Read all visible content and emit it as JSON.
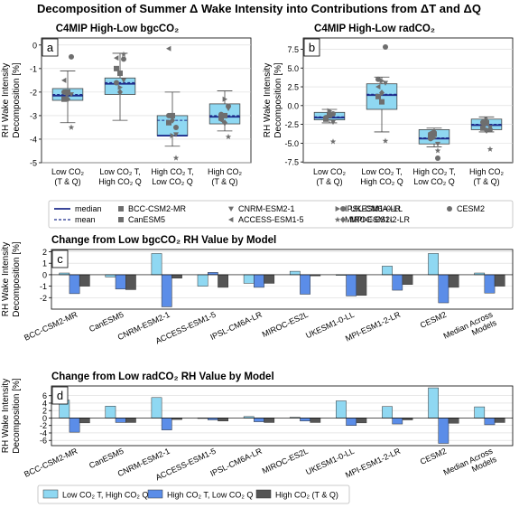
{
  "title": "Decomposition of Summer Δ Wake Intensity into Contributions from ΔT and ΔQ",
  "colors": {
    "box_light": "#8fd8f2",
    "box_mid": "#5b8de8",
    "box_dark": "#555555",
    "median": "#1f2d8c",
    "marker": "#6e6e6e"
  },
  "models": [
    "BCC-CSM2-MR",
    "CanESM5",
    "CNRM-ESM2-1",
    "ACCESS-ESM1-5",
    "IPSL-CM6A-LR",
    "MIROC-ES2L",
    "UKESM1-0-LL",
    "MPI-ESM1-2-LR",
    "CESM2"
  ],
  "legend_box": {
    "median_label": "median",
    "mean_label": "mean",
    "models": [
      {
        "name": "BCC-CSM2-MR",
        "marker": "square"
      },
      {
        "name": "CanESM5",
        "marker": "square"
      },
      {
        "name": "CNRM-ESM2-1",
        "marker": "triangle-down"
      },
      {
        "name": "ACCESS-ESM1-5",
        "marker": "triangle-left"
      },
      {
        "name": "IPSL-CM6A-LR",
        "marker": "triangle-right"
      },
      {
        "name": "MIROC-ES2L",
        "marker": "star"
      },
      {
        "name": "UKESM1-0-LL",
        "marker": "circle"
      },
      {
        "name": "MPI-ESM1-2-LR",
        "marker": "diamond"
      },
      {
        "name": "CESM2",
        "marker": "circle"
      }
    ]
  },
  "legend_bar": {
    "items": [
      {
        "label": "Low CO₂ T, High CO₂ Q",
        "color": "#8fd8f2"
      },
      {
        "label": "High CO₂ T, Low CO₂ Q",
        "color": "#5b8de8"
      },
      {
        "label": "High CO₂ (T & Q)",
        "color": "#555555"
      }
    ]
  },
  "chart_data": [
    {
      "panel": "a",
      "type": "box",
      "title": "C4MIP High-Low bgcCO₂",
      "ylabel": "RH Wake Intensity Decomposition [%]",
      "ylim": [
        -5,
        0.3
      ],
      "yticks": [
        0,
        -1,
        -2,
        -3,
        -4,
        -5
      ],
      "categories": [
        [
          "Low CO₂",
          "(T & Q)"
        ],
        [
          "Low CO₂ T,",
          "High CO₂ Q"
        ],
        [
          "High CO₂ T,",
          "Low CO₂ Q"
        ],
        [
          "High CO₂",
          "(T & Q)"
        ]
      ],
      "boxes": [
        {
          "whislo": -3.3,
          "q1": -2.35,
          "med": -2.15,
          "q3": -1.85,
          "whishi": -1.1,
          "mean": -2.1
        },
        {
          "whislo": -3.2,
          "q1": -2.1,
          "med": -1.65,
          "q3": -1.4,
          "whishi": -0.35,
          "mean": -1.6
        },
        {
          "whislo": -4.3,
          "q1": -3.85,
          "med": -3.85,
          "q3": -3.0,
          "whishi": -2.0,
          "mean": -3.2
        },
        {
          "whislo": -3.65,
          "q1": -3.35,
          "med": -3.05,
          "q3": -2.5,
          "whishi": -1.95,
          "mean": -3.0
        }
      ],
      "points": [
        [
          -2.3,
          -2.0,
          -2.1,
          -1.5,
          -2.1,
          -3.5,
          -2.0,
          -2.3,
          -0.5
        ],
        [
          -1.0,
          -1.2,
          -1.5,
          -0.55,
          -1.8,
          -0.4,
          -1.6,
          -2.0,
          -0.6
        ],
        [
          -3.3,
          -3.0,
          -3.8,
          -0.15,
          -3.85,
          -4.8,
          -3.0,
          -3.2,
          -3.5
        ],
        [
          -3.1,
          -3.0,
          -2.7,
          -3.2,
          -2.3,
          -3.9,
          -2.95,
          -3.3,
          -2.6
        ]
      ]
    },
    {
      "panel": "b",
      "type": "box",
      "title": "C4MIP High-Low radCO₂",
      "ylabel": "RH Wake Intensity Decomposition [%]",
      "ylim": [
        -7.6,
        9.0
      ],
      "yticks": [
        7.5,
        5.0,
        2.5,
        0.0,
        -2.5,
        -5.0,
        -7.5
      ],
      "categories": [
        [
          "Low CO₂",
          "(T & Q)"
        ],
        [
          "Low CO₂ T,",
          "High CO₂ Q"
        ],
        [
          "High CO₂ T,",
          "Low CO₂ Q"
        ],
        [
          "High CO₂",
          "(T & Q)"
        ]
      ],
      "boxes": [
        {
          "whislo": -2.3,
          "q1": -1.9,
          "med": -1.6,
          "q3": -0.9,
          "whishi": -0.5,
          "mean": -1.5
        },
        {
          "whislo": -3.5,
          "q1": -0.5,
          "med": 1.4,
          "q3": 2.9,
          "whishi": 3.8,
          "mean": 1.5
        },
        {
          "whislo": -5.5,
          "q1": -5.1,
          "med": -4.4,
          "q3": -3.2,
          "whishi": -3.0,
          "mean": -4.3
        },
        {
          "whislo": -3.5,
          "q1": -3.2,
          "med": -2.6,
          "q3": -1.8,
          "whishi": -1.5,
          "mean": -2.5
        }
      ],
      "points": [
        [
          -1.8,
          -1.3,
          -2.2,
          -1.5,
          -0.7,
          -4.8,
          -1.6,
          -1.0,
          -1.1
        ],
        [
          1.2,
          0.5,
          3.0,
          2.5,
          3.3,
          -4.7,
          3.5,
          1.7,
          7.8
        ],
        [
          -4.0,
          -3.8,
          -5.1,
          -3.6,
          -4.3,
          -6.0,
          -4.4,
          -3.5,
          -7.0
        ],
        [
          -3.0,
          -2.3,
          -2.9,
          -2.5,
          -1.8,
          -5.8,
          -2.2,
          -3.3,
          -3.2
        ]
      ]
    },
    {
      "panel": "c",
      "type": "bar",
      "title": "Change from Low bgcCO₂ RH Value by Model",
      "ylabel": "RH Wake Intensity Decomposition [%]",
      "ylim": [
        -3.0,
        2.2
      ],
      "yticks": [
        2,
        1,
        0,
        -1,
        -2
      ],
      "categories": [
        "BCC-CSM2-MR",
        "CanESM5",
        "CNRM-ESM2-1",
        "ACCESS-ESM1-5",
        "IPSL-CM6A-LR",
        "MIROC-ES2L",
        "UKESM1-0-LL",
        "MPI-ESM1-2-LR",
        "CESM2",
        "Median Across Models"
      ],
      "series": [
        {
          "name": "Low CO₂ T, High CO₂ Q",
          "values": [
            0.15,
            -0.2,
            1.85,
            -1.0,
            -0.75,
            0.3,
            -0.05,
            0.75,
            1.85,
            0.15
          ]
        },
        {
          "name": "High CO₂ T, Low CO₂ Q",
          "values": [
            -1.65,
            -1.25,
            -2.8,
            0.2,
            -1.1,
            -1.7,
            -1.85,
            -1.35,
            -2.45,
            -1.6
          ]
        },
        {
          "name": "High CO₂ (T & Q)",
          "values": [
            -1.0,
            -1.3,
            -0.3,
            -1.1,
            -0.75,
            -0.1,
            -1.8,
            -0.85,
            -1.1,
            -1.0
          ]
        }
      ]
    },
    {
      "panel": "d",
      "type": "bar",
      "title": "Change from Low radCO₂ RH Value by Model",
      "ylabel": "RH Wake Intensity Decomposition [%]",
      "ylim": [
        -7.4,
        8.6
      ],
      "yticks": [
        6,
        4,
        2,
        0,
        -2,
        -4,
        -6
      ],
      "categories": [
        "BCC-CSM2-MR",
        "CanESM5",
        "CNRM-ESM2-1",
        "ACCESS-ESM1-5",
        "IPSL-CM6A-LR",
        "MIROC-ES2L",
        "UKESM1-0-LL",
        "MPI-ESM1-2-LR",
        "CESM2",
        "Median Across Models"
      ],
      "series": [
        {
          "name": "Low CO₂ T, High CO₂ Q",
          "values": [
            4.8,
            3.2,
            5.5,
            0.0,
            0.4,
            0.2,
            4.6,
            3.1,
            8.1,
            3.0
          ]
        },
        {
          "name": "High CO₂ T, Low CO₂ Q",
          "values": [
            -3.8,
            -1.2,
            -3.2,
            -0.5,
            -1.0,
            -0.8,
            -2.0,
            -1.6,
            -6.8,
            -1.8
          ]
        },
        {
          "name": "High CO₂ (T & Q)",
          "values": [
            -1.3,
            -1.2,
            -0.4,
            -0.8,
            -1.2,
            -1.2,
            -1.3,
            -0.5,
            -1.4,
            -1.2
          ]
        }
      ]
    }
  ]
}
